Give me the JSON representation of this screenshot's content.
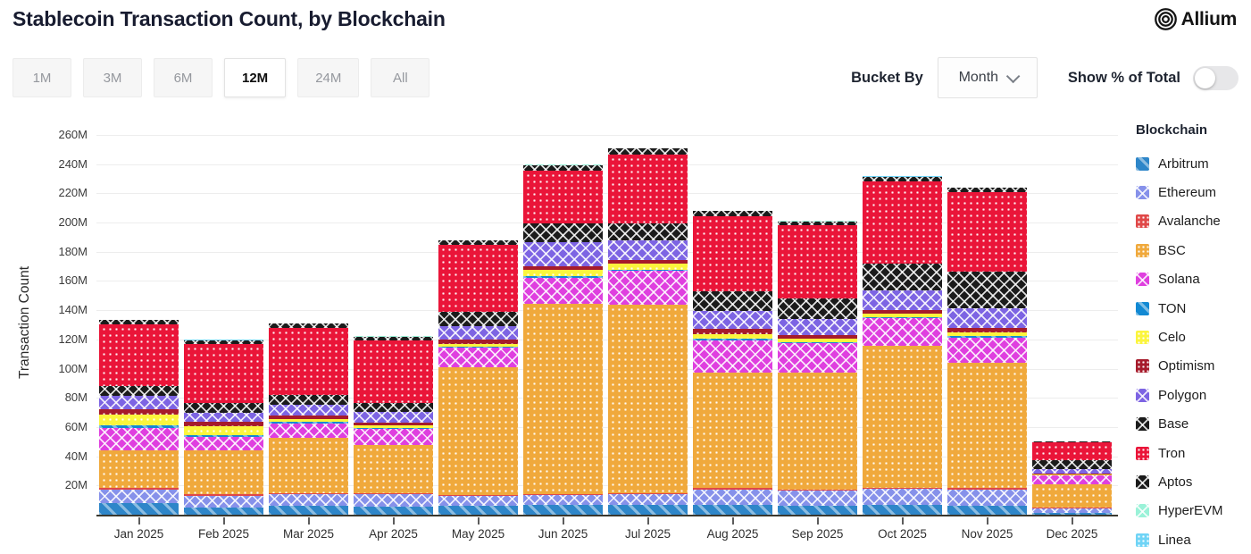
{
  "header": {
    "title": "Stablecoin Transaction Count, by Blockchain",
    "brand": "Allium"
  },
  "controls": {
    "ranges": [
      "1M",
      "3M",
      "6M",
      "12M",
      "24M",
      "All"
    ],
    "active_range": "12M",
    "bucket_by_label": "Bucket By",
    "bucket_value": "Month",
    "toggle_label": "Show % of Total",
    "toggle_state": "off"
  },
  "chart_data": {
    "type": "bar",
    "stacked": true,
    "title": "Stablecoin Transaction Count, by Blockchain",
    "ylabel": "Transaction Count",
    "xlabel": "",
    "unit": "M",
    "unit_meaning": "millions of transactions",
    "ylim": [
      0,
      260
    ],
    "ytick_step": 20,
    "grid": true,
    "legend_title": "Blockchain",
    "legend_position": "right",
    "categories": [
      "Jan 2025",
      "Feb 2025",
      "Mar 2025",
      "Apr 2025",
      "May 2025",
      "Jun 2025",
      "Jul 2025",
      "Aug 2025",
      "Sep 2025",
      "Oct 2025",
      "Nov 2025",
      "Dec 2025"
    ],
    "series": [
      {
        "name": "Arbitrum",
        "color": "#2e86c9",
        "pattern": "diag",
        "values": [
          8.5,
          5.5,
          6.5,
          6.0,
          6.5,
          7.5,
          7.5,
          7.5,
          7.0,
          7.5,
          7.0,
          2.0
        ]
      },
      {
        "name": "Ethereum",
        "color": "#8691ea",
        "pattern": "cross",
        "values": [
          9.5,
          8.0,
          8.0,
          8.4,
          6.8,
          6.5,
          7.0,
          10.5,
          10.0,
          10.6,
          10.8,
          3.0
        ]
      },
      {
        "name": "Avalanche",
        "color": "#e04848",
        "pattern": "dots",
        "values": [
          1.0,
          1.0,
          1.0,
          1.0,
          1.0,
          1.0,
          1.0,
          1.0,
          1.0,
          1.0,
          1.0,
          0.3
        ]
      },
      {
        "name": "BSC",
        "color": "#f0a93c",
        "pattern": "dots",
        "values": [
          25.5,
          30.0,
          38.0,
          33.0,
          87.0,
          130.0,
          129.0,
          79.0,
          80.0,
          97.0,
          86.0,
          16.0
        ]
      },
      {
        "name": "Solana",
        "color": "#df3fdf",
        "pattern": "cross",
        "values": [
          15.5,
          9.5,
          9.5,
          11.0,
          13.5,
          18.0,
          23.0,
          22.0,
          20.0,
          19.0,
          17.2,
          6.0
        ]
      },
      {
        "name": "TON",
        "color": "#1289d3",
        "pattern": "diag",
        "values": [
          1.6,
          1.0,
          1.0,
          0.8,
          0.8,
          1.0,
          1.0,
          1.0,
          1.0,
          1.0,
          1.2,
          0.3
        ]
      },
      {
        "name": "Celo",
        "color": "#fbf53d",
        "pattern": "dots",
        "values": [
          7.8,
          6.0,
          2.0,
          1.4,
          2.1,
          4.0,
          4.0,
          3.1,
          2.0,
          2.2,
          2.5,
          0.5
        ]
      },
      {
        "name": "Optimism",
        "color": "#a61b2b",
        "pattern": "dots",
        "values": [
          3.5,
          3.0,
          2.6,
          2.3,
          3.1,
          3.0,
          2.5,
          3.7,
          2.5,
          2.5,
          3.1,
          0.5
        ]
      },
      {
        "name": "Polygon",
        "color": "#7d64e3",
        "pattern": "cross",
        "values": [
          9.0,
          6.5,
          7.2,
          7.0,
          8.8,
          16.0,
          13.3,
          12.3,
          11.3,
          13.3,
          12.9,
          3.1
        ]
      },
      {
        "name": "Base",
        "color": "#1b1b1b",
        "pattern": "cross",
        "values": [
          7.0,
          6.5,
          7.0,
          6.2,
          9.7,
          13.0,
          12.0,
          13.7,
          13.8,
          18.4,
          25.6,
          6.5
        ]
      },
      {
        "name": "Tron",
        "color": "#ea1539",
        "pattern": "dots",
        "values": [
          42.0,
          40.5,
          46.0,
          43.0,
          46.0,
          36.0,
          47.0,
          51.0,
          50.5,
          56.5,
          54.3,
          12.0
        ]
      },
      {
        "name": "Aptos",
        "color": "#1b1b1b",
        "pattern": "cross",
        "values": [
          3.0,
          2.5,
          2.5,
          2.5,
          3.0,
          4.0,
          4.0,
          3.8,
          2.5,
          3.0,
          3.0,
          0.5
        ]
      },
      {
        "name": "HyperEVM",
        "color": "#9af2d8",
        "pattern": "cross",
        "values": [
          0.2,
          0.2,
          0.2,
          0.2,
          0.2,
          0.2,
          0.2,
          0.2,
          0.2,
          0.2,
          0.2,
          0.1
        ]
      },
      {
        "name": "Linea",
        "color": "#6fd4f6",
        "pattern": "dots",
        "values": [
          0.1,
          0.1,
          0.1,
          0.1,
          0.1,
          0.1,
          0.1,
          0.1,
          0.1,
          0.1,
          0.1,
          0.1
        ]
      }
    ]
  }
}
